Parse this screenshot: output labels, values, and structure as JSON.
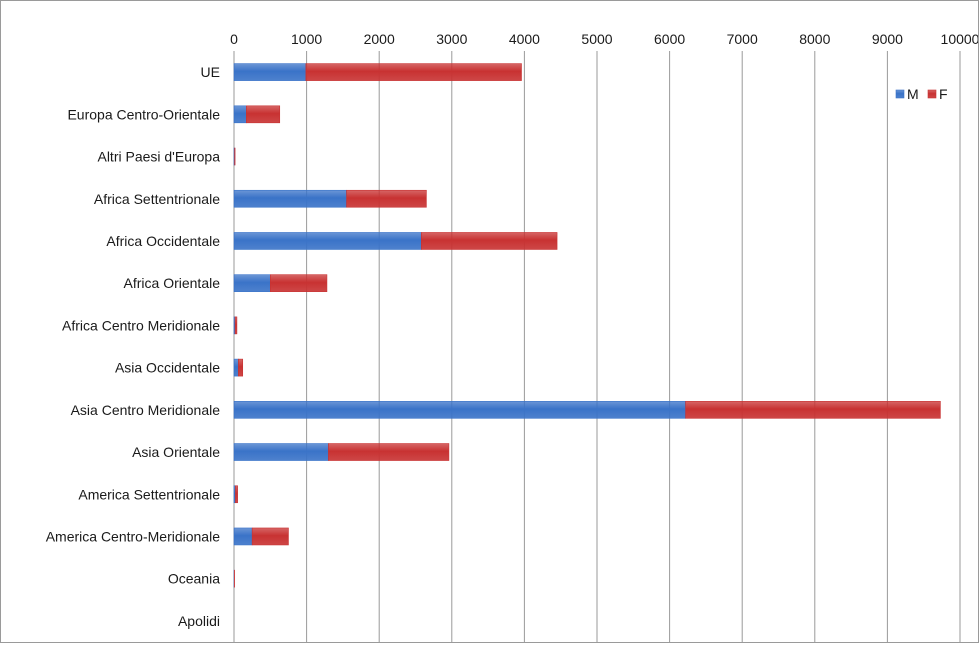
{
  "chart_data": {
    "type": "bar",
    "orientation": "horizontal",
    "stacked": true,
    "categories": [
      "UE",
      "Europa Centro-Orientale",
      "Altri Paesi d'Europa",
      "Africa Settentrionale",
      "Africa Occidentale",
      "Africa Orientale",
      "Africa Centro Meridionale",
      "Asia Occidentale",
      "Asia Centro Meridionale",
      "Asia Orientale",
      "America Settentrionale",
      "America Centro-Meridionale",
      "Oceania",
      "Apolidi"
    ],
    "series": [
      {
        "name": "M",
        "color": "#3a73c8",
        "values": [
          990,
          170,
          8,
          1550,
          2580,
          500,
          15,
          60,
          6220,
          1300,
          20,
          250,
          4,
          0
        ]
      },
      {
        "name": "F",
        "color": "#c83232",
        "values": [
          2970,
          460,
          7,
          1100,
          1870,
          780,
          25,
          60,
          3510,
          1660,
          30,
          500,
          4,
          0
        ]
      }
    ],
    "xlim": [
      0,
      10000
    ],
    "xticks": [
      "0",
      "1000",
      "2000",
      "3000",
      "4000",
      "5000",
      "6000",
      "7000",
      "8000",
      "9000",
      "10000"
    ],
    "xtick_values": [
      0,
      1000,
      2000,
      3000,
      4000,
      5000,
      6000,
      7000,
      8000,
      9000,
      10000
    ],
    "x_axis_position": "top",
    "grid": true,
    "legend_position": "top-right",
    "gridline_color": "#9a9a9a"
  }
}
